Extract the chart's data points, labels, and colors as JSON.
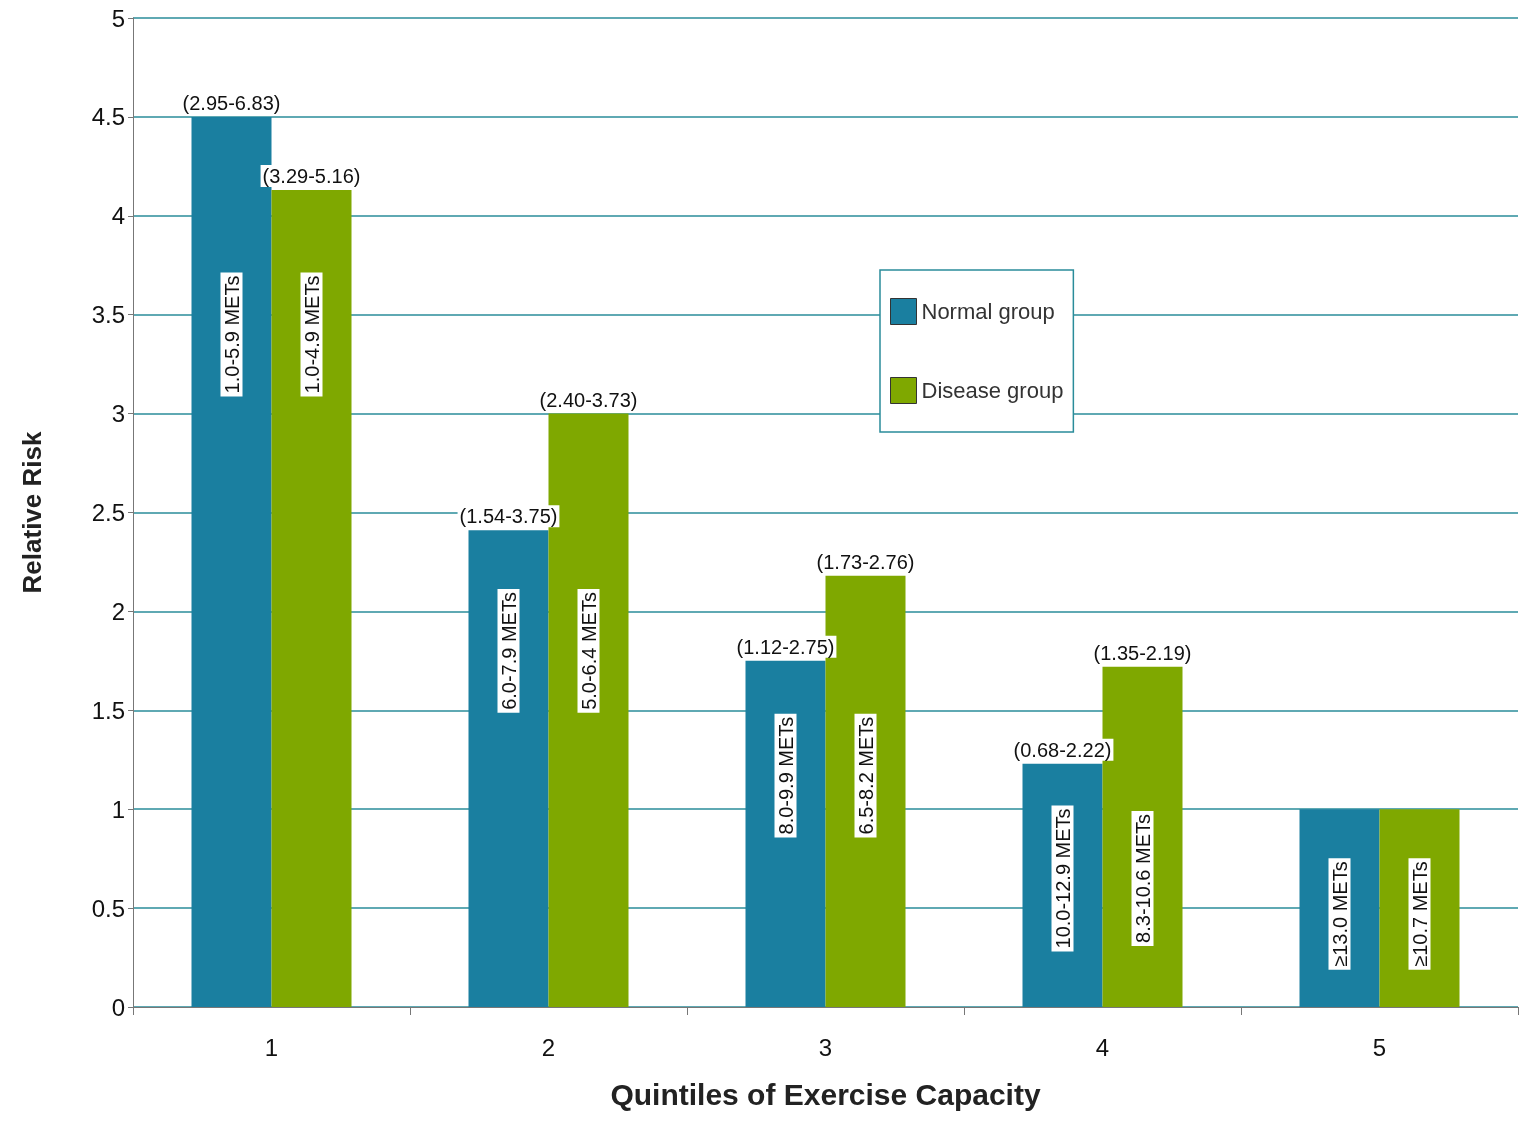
{
  "chart_data": {
    "type": "bar",
    "xlabel": "Quintiles of Exercise Capacity",
    "ylabel": "Relative Risk",
    "categories": [
      "1",
      "2",
      "3",
      "4",
      "5"
    ],
    "series": [
      {
        "name": "Normal group",
        "color": "#1a7fa0",
        "values": [
          4.5,
          2.41,
          1.75,
          1.23,
          1.0
        ],
        "value_labels": [
          "(2.95-6.83)",
          "(1.54-3.75)",
          "(1.12-2.75)",
          "(0.68-2.22)",
          null
        ]
      },
      {
        "name": "Disease group",
        "color": "#7fa800",
        "values": [
          4.13,
          3.0,
          2.18,
          1.72,
          1.0
        ],
        "value_labels": [
          "(3.29-5.16)",
          "(2.40-3.73)",
          "(1.73-2.76)",
          "(1.35-2.19)",
          null
        ]
      }
    ],
    "annotations": [
      {
        "text": "1.0-5.9 METs",
        "x": "1",
        "y": 3.4
      },
      {
        "text": "1.0-4.9 METs",
        "x": "1",
        "y": 3.4
      },
      {
        "text": "6.0-7.9 METs",
        "x": "2",
        "y": 1.8
      },
      {
        "text": "5.0-6.4 METs",
        "x": "2",
        "y": 1.8
      },
      {
        "text": "8.0-9.9 METs",
        "x": "3",
        "y": 1.17
      },
      {
        "text": "6.5-8.2 METs",
        "x": "3",
        "y": 1.17
      },
      {
        "text": "10.0-12.9 METs",
        "x": "4",
        "y": 0.65
      },
      {
        "text": "8.3-10.6 METs",
        "x": "4",
        "y": 0.65
      },
      {
        "text": "≥13.0 METs",
        "x": "5",
        "y": 0.47
      },
      {
        "text": "≥10.7 METs",
        "x": "5",
        "y": 0.47
      }
    ],
    "ylim": [
      0,
      5
    ],
    "yticks": [
      0,
      0.5,
      1,
      1.5,
      2,
      2.5,
      3,
      3.5,
      4,
      4.5,
      5
    ],
    "grid": "y",
    "legend": "top right"
  }
}
